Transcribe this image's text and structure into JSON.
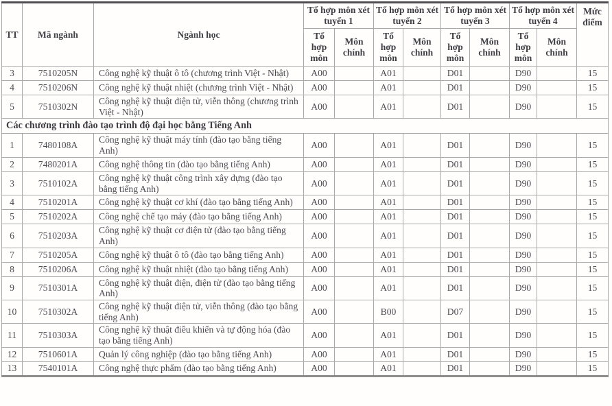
{
  "table": {
    "header": {
      "tt": "TT",
      "ma_nganh": "Mã ngành",
      "nganh_hoc": "Ngành học",
      "group_labels": [
        "Tổ hợp môn xét tuyển 1",
        "Tổ hợp môn xét tuyển 2",
        "Tổ hợp môn xét tuyển 3",
        "Tổ hợp môn xét tuyển 4"
      ],
      "sub_combo": "Tổ hợp môn",
      "sub_main": "Môn chính",
      "muc_diem": "Mức điểm"
    },
    "rows_viet_nhat": [
      {
        "tt": "3",
        "code": "7510205N",
        "name": "Công nghệ kỹ thuật ô tô (chương trình Việt - Nhật)",
        "g1": "A00",
        "g1m": "",
        "g2": "A01",
        "g2m": "",
        "g3": "D01",
        "g3m": "",
        "g4": "D90",
        "g4m": "",
        "score": "15"
      },
      {
        "tt": "4",
        "code": "7510206N",
        "name": "Công nghệ kỹ thuật nhiệt (chương trình Việt - Nhật)",
        "g1": "A00",
        "g1m": "",
        "g2": "A01",
        "g2m": "",
        "g3": "D01",
        "g3m": "",
        "g4": "D90",
        "g4m": "",
        "score": "15"
      },
      {
        "tt": "5",
        "code": "7510302N",
        "name": "Công nghệ kỹ thuật điện tử, viễn thông (chương trình Việt - Nhật)",
        "g1": "A00",
        "g1m": "",
        "g2": "A01",
        "g2m": "",
        "g3": "D01",
        "g3m": "",
        "g4": "D90",
        "g4m": "",
        "score": "15"
      }
    ],
    "section_header": "Các chương trình đào tạo trình độ đại học bằng Tiếng Anh",
    "rows_english": [
      {
        "tt": "1",
        "code": "7480108A",
        "name": "Công nghệ kỹ thuật máy tính (đào tạo bằng tiếng Anh)",
        "g1": "A00",
        "g1m": "",
        "g2": "A01",
        "g2m": "",
        "g3": "D01",
        "g3m": "",
        "g4": "D90",
        "g4m": "",
        "score": "15"
      },
      {
        "tt": "2",
        "code": "7480201A",
        "name": "Công nghệ thông tin (đào tạo bằng tiếng Anh)",
        "g1": "A00",
        "g1m": "",
        "g2": "A01",
        "g2m": "",
        "g3": "D01",
        "g3m": "",
        "g4": "D90",
        "g4m": "",
        "score": "15"
      },
      {
        "tt": "3",
        "code": "7510102A",
        "name": "Công nghệ kỹ thuật công trình xây dựng (đào tạo bằng tiếng Anh)",
        "g1": "A00",
        "g1m": "",
        "g2": "A01",
        "g2m": "",
        "g3": "D01",
        "g3m": "",
        "g4": "D90",
        "g4m": "",
        "score": "15"
      },
      {
        "tt": "4",
        "code": "7510201A",
        "name": "Công nghệ kỹ thuật cơ khí  (đào tạo bằng tiếng Anh)",
        "g1": "A00",
        "g1m": "",
        "g2": "A01",
        "g2m": "",
        "g3": "D01",
        "g3m": "",
        "g4": "D90",
        "g4m": "",
        "score": "15"
      },
      {
        "tt": "5",
        "code": "7510202A",
        "name": "Công nghệ chế tạo máy  (đào tạo bằng tiếng Anh)",
        "g1": "A00",
        "g1m": "",
        "g2": "A01",
        "g2m": "",
        "g3": "D01",
        "g3m": "",
        "g4": "D90",
        "g4m": "",
        "score": "15"
      },
      {
        "tt": "6",
        "code": "7510203A",
        "name": "Công nghệ kỹ thuật cơ điện tử (đào tạo bằng tiếng Anh)",
        "g1": "A00",
        "g1m": "",
        "g2": "A01",
        "g2m": "",
        "g3": "D01",
        "g3m": "",
        "g4": "D90",
        "g4m": "",
        "score": "15"
      },
      {
        "tt": "7",
        "code": "7510205A",
        "name": "Công nghệ kỹ thuật ô tô (đào tạo bằng tiếng Anh)",
        "g1": "A00",
        "g1m": "",
        "g2": "A01",
        "g2m": "",
        "g3": "D01",
        "g3m": "",
        "g4": "D90",
        "g4m": "",
        "score": "15"
      },
      {
        "tt": "8",
        "code": "7510206A",
        "name": "Công nghệ kỹ thuật nhiệt (đào tạo bằng tiếng Anh)",
        "g1": "A00",
        "g1m": "",
        "g2": "A01",
        "g2m": "",
        "g3": "D01",
        "g3m": "",
        "g4": "D90",
        "g4m": "",
        "score": "15"
      },
      {
        "tt": "9",
        "code": "7510301A",
        "name": "Công nghệ kỹ thuật điện, điện tử  (đào tạo bằng tiếng Anh)",
        "g1": "A00",
        "g1m": "",
        "g2": "A01",
        "g2m": "",
        "g3": "D01",
        "g3m": "",
        "g4": "D90",
        "g4m": "",
        "score": "15"
      },
      {
        "tt": "10",
        "code": "7510302A",
        "name": "Công nghệ kỹ thuật điện tử, viễn thông (đào tạo bằng tiếng Anh)",
        "g1": "A00",
        "g1m": "",
        "g2": "B00",
        "g2m": "",
        "g3": "D07",
        "g3m": "",
        "g4": "D90",
        "g4m": "",
        "score": "15"
      },
      {
        "tt": "11",
        "code": "7510303A",
        "name": "Công nghệ kỹ thuật điều khiển và tự động hóa (đào tạo bằng tiếng Anh)",
        "g1": "A00",
        "g1m": "",
        "g2": "A01",
        "g2m": "",
        "g3": "D01",
        "g3m": "",
        "g4": "D90",
        "g4m": "",
        "score": "15"
      },
      {
        "tt": "12",
        "code": "7510601A",
        "name": "Quản lý công nghiệp (đào tạo bằng tiếng Anh)",
        "g1": "A00",
        "g1m": "",
        "g2": "A01",
        "g2m": "",
        "g3": "D01",
        "g3m": "",
        "g4": "D90",
        "g4m": "",
        "score": "15"
      },
      {
        "tt": "13",
        "code": "7540101A",
        "name": "Công nghệ thực phẩm (đào tạo bằng tiếng Anh)",
        "g1": "A00",
        "g1m": "",
        "g2": "A01",
        "g2m": "",
        "g3": "D01",
        "g3m": "",
        "g4": "D90",
        "g4m": "",
        "score": "15"
      }
    ]
  }
}
